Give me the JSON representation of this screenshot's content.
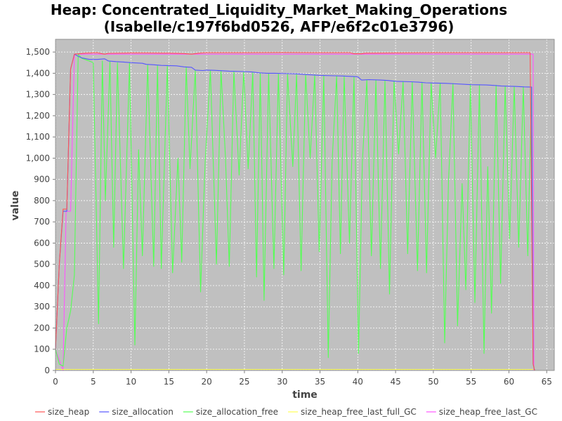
{
  "chart_data": {
    "type": "line",
    "title_line1": "Heap: Concentrated_Liquidity_Market_Making_Operations",
    "title_line2": "(Isabelle/c197f6bd0526, AFP/e6f2c01e3796)",
    "xlabel": "time",
    "ylabel": "value",
    "xlim": [
      0,
      66
    ],
    "ylim": [
      0,
      1560
    ],
    "x_ticks": [
      0,
      5,
      10,
      15,
      20,
      25,
      30,
      35,
      40,
      45,
      50,
      55,
      60,
      65
    ],
    "y_ticks": [
      0,
      100,
      200,
      300,
      400,
      500,
      600,
      700,
      800,
      900,
      1000,
      1100,
      1200,
      1300,
      1400,
      1500
    ],
    "y_tick_labels": [
      "0",
      "100",
      "200",
      "300",
      "400",
      "500",
      "600",
      "700",
      "800",
      "900",
      "1,000",
      "1,100",
      "1,200",
      "1,300",
      "1,400",
      "1,500"
    ],
    "grid": true,
    "plot_background": "#c0c0c0",
    "legend_position": "bottom",
    "series": [
      {
        "name": "size_heap",
        "color": "#ff5555",
        "points": [
          [
            0,
            100
          ],
          [
            0.5,
            500
          ],
          [
            1,
            760
          ],
          [
            1.5,
            760
          ],
          [
            2,
            1420
          ],
          [
            2.5,
            1490
          ],
          [
            4,
            1495
          ],
          [
            5.5,
            1497
          ],
          [
            6.5,
            1490
          ],
          [
            7,
            1494
          ],
          [
            10,
            1496
          ],
          [
            12,
            1496
          ],
          [
            15,
            1495
          ],
          [
            17,
            1493
          ],
          [
            18,
            1490
          ],
          [
            19,
            1495
          ],
          [
            20,
            1497
          ],
          [
            25,
            1497
          ],
          [
            30,
            1498
          ],
          [
            35,
            1497
          ],
          [
            39,
            1497
          ],
          [
            39.5,
            1492
          ],
          [
            40.5,
            1492
          ],
          [
            41,
            1495
          ],
          [
            45,
            1496
          ],
          [
            50,
            1497
          ],
          [
            55,
            1497
          ],
          [
            60,
            1497
          ],
          [
            62.8,
            1497
          ],
          [
            63.2,
            30
          ],
          [
            63.4,
            0
          ]
        ]
      },
      {
        "name": "size_allocation",
        "color": "#5555ff",
        "points": [
          [
            0,
            100
          ],
          [
            0.5,
            500
          ],
          [
            1,
            750
          ],
          [
            1.5,
            750
          ],
          [
            2,
            1420
          ],
          [
            2.5,
            1490
          ],
          [
            3,
            1480
          ],
          [
            3.5,
            1472
          ],
          [
            4.5,
            1465
          ],
          [
            5.5,
            1465
          ],
          [
            6.5,
            1468
          ],
          [
            7,
            1458
          ],
          [
            8,
            1455
          ],
          [
            9,
            1453
          ],
          [
            10,
            1450
          ],
          [
            11.5,
            1447
          ],
          [
            12,
            1442
          ],
          [
            13,
            1440
          ],
          [
            14,
            1437
          ],
          [
            16,
            1435
          ],
          [
            17,
            1430
          ],
          [
            18,
            1428
          ],
          [
            18.5,
            1415
          ],
          [
            19.5,
            1413
          ],
          [
            20,
            1415
          ],
          [
            21,
            1414
          ],
          [
            22,
            1412
          ],
          [
            23,
            1410
          ],
          [
            25,
            1408
          ],
          [
            26,
            1406
          ],
          [
            27,
            1402
          ],
          [
            28,
            1400
          ],
          [
            29,
            1400
          ],
          [
            31,
            1398
          ],
          [
            32,
            1397
          ],
          [
            33,
            1394
          ],
          [
            34,
            1392
          ],
          [
            35,
            1390
          ],
          [
            37,
            1388
          ],
          [
            38,
            1387
          ],
          [
            40,
            1384
          ],
          [
            40.5,
            1368
          ],
          [
            41.5,
            1370
          ],
          [
            43,
            1368
          ],
          [
            44,
            1366
          ],
          [
            45,
            1362
          ],
          [
            47,
            1360
          ],
          [
            48,
            1358
          ],
          [
            49,
            1355
          ],
          [
            50,
            1354
          ],
          [
            52,
            1352
          ],
          [
            53,
            1350
          ],
          [
            54,
            1348
          ],
          [
            55,
            1346
          ],
          [
            57,
            1345
          ],
          [
            58,
            1343
          ],
          [
            59,
            1340
          ],
          [
            61,
            1338
          ],
          [
            62,
            1336
          ],
          [
            63,
            1335
          ],
          [
            63.2,
            30
          ],
          [
            63.4,
            0
          ]
        ]
      },
      {
        "name": "size_allocation_free",
        "color": "#55ff55",
        "points": [
          [
            0,
            100
          ],
          [
            0.5,
            30
          ],
          [
            1,
            20
          ],
          [
            1.5,
            200
          ],
          [
            2,
            280
          ],
          [
            2.5,
            450
          ],
          [
            3,
            1490
          ],
          [
            3.5,
            1470
          ],
          [
            4.3,
            1460
          ],
          [
            5,
            1450
          ],
          [
            5.7,
            220
          ],
          [
            6.2,
            1458
          ],
          [
            6.6,
            800
          ],
          [
            7.2,
            1455
          ],
          [
            7.7,
            580
          ],
          [
            8.2,
            1450
          ],
          [
            9,
            480
          ],
          [
            9.8,
            1450
          ],
          [
            10.5,
            120
          ],
          [
            11,
            1040
          ],
          [
            11.5,
            540
          ],
          [
            12.2,
            1440
          ],
          [
            13,
            490
          ],
          [
            13.5,
            1438
          ],
          [
            14,
            480
          ],
          [
            14.8,
            1435
          ],
          [
            15.5,
            460
          ],
          [
            16.2,
            1000
          ],
          [
            16.7,
            510
          ],
          [
            17.3,
            1430
          ],
          [
            17.8,
            950
          ],
          [
            18.5,
            1415
          ],
          [
            19.2,
            370
          ],
          [
            19.8,
            980
          ],
          [
            20.5,
            1413
          ],
          [
            21.3,
            500
          ],
          [
            21.9,
            1413
          ],
          [
            22.5,
            1000
          ],
          [
            23,
            490
          ],
          [
            23.6,
            1410
          ],
          [
            24.3,
            920
          ],
          [
            24.9,
            1408
          ],
          [
            25.5,
            950
          ],
          [
            26.1,
            1405
          ],
          [
            26.6,
            440
          ],
          [
            27.1,
            1400
          ],
          [
            27.6,
            330
          ],
          [
            28.2,
            1400
          ],
          [
            28.9,
            480
          ],
          [
            29.5,
            1398
          ],
          [
            30.2,
            450
          ],
          [
            30.7,
            1398
          ],
          [
            31.4,
            960
          ],
          [
            31.9,
            1397
          ],
          [
            32.5,
            470
          ],
          [
            33.1,
            1395
          ],
          [
            33.7,
            1000
          ],
          [
            34.3,
            1393
          ],
          [
            34.9,
            560
          ],
          [
            35.5,
            1390
          ],
          [
            36.1,
            60
          ],
          [
            36.6,
            980
          ],
          [
            37.2,
            1388
          ],
          [
            37.7,
            550
          ],
          [
            38.2,
            1387
          ],
          [
            38.9,
            600
          ],
          [
            39.5,
            1385
          ],
          [
            40.1,
            80
          ],
          [
            40.6,
            980
          ],
          [
            41.2,
            1370
          ],
          [
            41.8,
            540
          ],
          [
            42.4,
            1368
          ],
          [
            43,
            480
          ],
          [
            43.6,
            1366
          ],
          [
            44.2,
            360
          ],
          [
            44.8,
            1364
          ],
          [
            45.4,
            1020
          ],
          [
            46,
            1362
          ],
          [
            46.6,
            550
          ],
          [
            47.2,
            1360
          ],
          [
            47.9,
            470
          ],
          [
            48.5,
            1358
          ],
          [
            49.1,
            460
          ],
          [
            49.7,
            1355
          ],
          [
            50.3,
            1000
          ],
          [
            50.9,
            1354
          ],
          [
            51.5,
            130
          ],
          [
            52,
            890
          ],
          [
            52.6,
            1352
          ],
          [
            53.2,
            210
          ],
          [
            53.8,
            880
          ],
          [
            54.3,
            380
          ],
          [
            54.9,
            1348
          ],
          [
            55.5,
            320
          ],
          [
            56.1,
            1346
          ],
          [
            56.7,
            80
          ],
          [
            57.2,
            960
          ],
          [
            57.7,
            270
          ],
          [
            58.3,
            1344
          ],
          [
            58.9,
            410
          ],
          [
            59.5,
            1340
          ],
          [
            60.1,
            620
          ],
          [
            60.7,
            1338
          ],
          [
            61.3,
            580
          ],
          [
            61.9,
            1336
          ],
          [
            62.5,
            540
          ],
          [
            63,
            1335
          ],
          [
            63.2,
            30
          ],
          [
            63.4,
            0
          ]
        ]
      },
      {
        "name": "size_heap_free_last_full_GC",
        "color": "#ffff55",
        "points": [
          [
            0,
            5
          ],
          [
            63.2,
            5
          ]
        ]
      },
      {
        "name": "size_heap_free_last_GC",
        "color": "#ff55ff",
        "points": [
          [
            0,
            100
          ],
          [
            1,
            0
          ],
          [
            1.4,
            750
          ],
          [
            2,
            750
          ],
          [
            2.5,
            1490
          ],
          [
            63.2,
            1490
          ],
          [
            63.3,
            0
          ]
        ],
        "hidden_under_others": true
      }
    ]
  }
}
